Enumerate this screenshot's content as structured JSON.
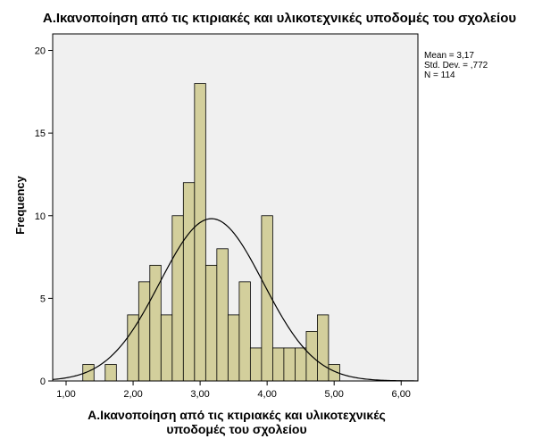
{
  "chart_data": {
    "type": "bar",
    "title": "Α.Ικανοποίηση από τις κτιριακές και υλικοτεχνικές υποδομές του σχολείου",
    "xlabel_line1": "Α.Ικανοποίηση από τις κτιριακές και υλικοτεχνικές",
    "xlabel_line2": "υποδομές του σχολείου",
    "ylabel": "Frequency",
    "xlim": [
      0.8,
      6.25
    ],
    "ylim": [
      0,
      21
    ],
    "x_ticks": [
      "1,00",
      "2,00",
      "3,00",
      "4,00",
      "5,00",
      "6,00"
    ],
    "x_tick_values": [
      1,
      2,
      3,
      4,
      5,
      6
    ],
    "y_ticks": [
      "0",
      "5",
      "10",
      "15",
      "20"
    ],
    "y_tick_values": [
      0,
      5,
      10,
      15,
      20
    ],
    "bin_width": 0.1667,
    "bins": [
      {
        "x": 1.333,
        "value": 1
      },
      {
        "x": 1.667,
        "value": 1
      },
      {
        "x": 2.0,
        "value": 4
      },
      {
        "x": 2.167,
        "value": 6
      },
      {
        "x": 2.333,
        "value": 7
      },
      {
        "x": 2.5,
        "value": 4
      },
      {
        "x": 2.667,
        "value": 10
      },
      {
        "x": 2.833,
        "value": 12
      },
      {
        "x": 3.0,
        "value": 18
      },
      {
        "x": 3.167,
        "value": 7
      },
      {
        "x": 3.333,
        "value": 8
      },
      {
        "x": 3.5,
        "value": 4
      },
      {
        "x": 3.667,
        "value": 6
      },
      {
        "x": 3.833,
        "value": 2
      },
      {
        "x": 4.0,
        "value": 10
      },
      {
        "x": 4.167,
        "value": 2
      },
      {
        "x": 4.333,
        "value": 2
      },
      {
        "x": 4.5,
        "value": 2
      },
      {
        "x": 4.667,
        "value": 3
      },
      {
        "x": 4.833,
        "value": 4
      },
      {
        "x": 5.0,
        "value": 1
      }
    ],
    "normal_curve": {
      "mean": 3.17,
      "sd": 0.772,
      "n": 114
    },
    "stats_text": [
      "Mean = 3,17",
      "Std. Dev. = ,772",
      "N = 114"
    ],
    "bar_color": "#d3cf9c",
    "plot_background": "#f0f0f0",
    "grid": false
  }
}
